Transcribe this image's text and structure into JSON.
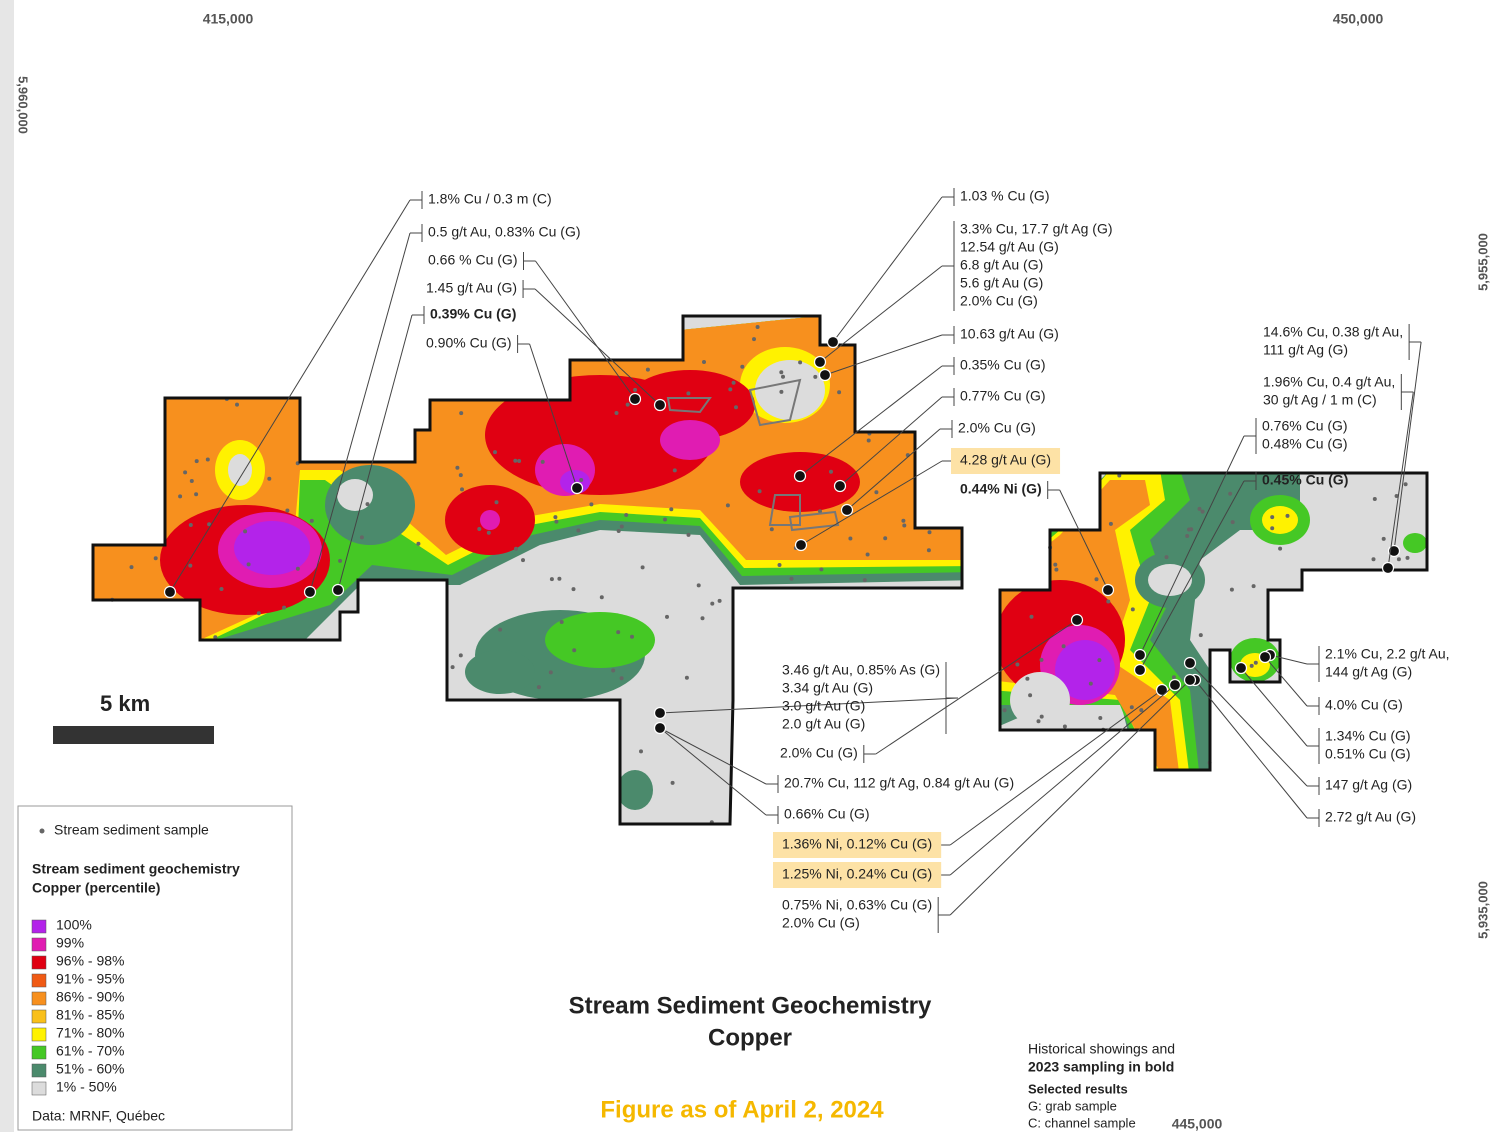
{
  "map": {
    "coordinates": {
      "easting": [
        "415,000",
        "450,000",
        "445,000"
      ],
      "northing": [
        "5,960,000",
        "5,955,000",
        "5,935,000"
      ]
    },
    "scale_bar": "5 km",
    "title": [
      "Stream Sediment Geochemistry",
      "Copper"
    ],
    "footer": "Figure as of April 2, 2024",
    "notes": [
      "Historical showings and",
      "2023 sampling in bold",
      "Selected results",
      "G: grab sample",
      "C: channel sample"
    ],
    "legend": {
      "sample": "Stream sediment sample",
      "heading": [
        "Stream sediment geochemistry",
        "Copper (percentile)"
      ],
      "classes": [
        {
          "label": "100%",
          "color": "#b323ea"
        },
        {
          "label": "99%",
          "color": "#e01cb2"
        },
        {
          "label": "96% - 98%",
          "color": "#e00012"
        },
        {
          "label": "91% - 95%",
          "color": "#f05a14"
        },
        {
          "label": "86% - 90%",
          "color": "#f7901e"
        },
        {
          "label": "81% - 85%",
          "color": "#f9c01a"
        },
        {
          "label": "71% - 80%",
          "color": "#fff200"
        },
        {
          "label": "61% - 70%",
          "color": "#45c825"
        },
        {
          "label": "51% - 60%",
          "color": "#4b8a6c"
        },
        {
          "label": "1% - 50%",
          "color": "#dcdcdc"
        }
      ],
      "source": "Data: MRNF, Québec"
    },
    "labels": [
      {
        "lines": [
          "1.8% Cu / 0.3 m (C)"
        ],
        "bold": false,
        "highlight": false
      },
      {
        "lines": [
          "0.5 g/t Au, 0.83% Cu (G)"
        ],
        "bold": false,
        "highlight": false
      },
      {
        "lines": [
          "0.66 % Cu (G)"
        ],
        "bold": false,
        "highlight": false
      },
      {
        "lines": [
          "1.45 g/t Au (G)"
        ],
        "bold": false,
        "highlight": false
      },
      {
        "lines": [
          "0.39% Cu (G)"
        ],
        "bold": true,
        "highlight": false
      },
      {
        "lines": [
          "0.90% Cu (G)"
        ],
        "bold": false,
        "highlight": false
      },
      {
        "lines": [
          "1.03 % Cu (G)"
        ],
        "bold": false,
        "highlight": false
      },
      {
        "lines": [
          "3.3% Cu, 17.7 g/t Ag (G)",
          "12.54 g/t Au (G)",
          "6.8 g/t Au (G)",
          "5.6 g/t Au (G)",
          "2.0% Cu (G)"
        ],
        "bold": false,
        "highlight": false
      },
      {
        "lines": [
          "10.63 g/t Au (G)"
        ],
        "bold": false,
        "highlight": false
      },
      {
        "lines": [
          "0.35% Cu (G)"
        ],
        "bold": false,
        "highlight": false
      },
      {
        "lines": [
          "0.77% Cu (G)"
        ],
        "bold": false,
        "highlight": false
      },
      {
        "lines": [
          "2.0% Cu (G)"
        ],
        "bold": false,
        "highlight": false
      },
      {
        "lines": [
          "4.28 g/t Au (G)"
        ],
        "bold": false,
        "highlight": true
      },
      {
        "lines": [
          "0.44% Ni (G)"
        ],
        "bold": true,
        "highlight": false
      },
      {
        "lines": [
          "14.6% Cu, 0.38 g/t Au,",
          "111 g/t Ag (G)"
        ],
        "bold": false,
        "highlight": false
      },
      {
        "lines": [
          "1.96% Cu, 0.4 g/t Au,",
          "30 g/t Ag / 1 m (C)"
        ],
        "bold": false,
        "highlight": false
      },
      {
        "lines": [
          "0.76% Cu (G)",
          "0.48% Cu (G)"
        ],
        "bold": false,
        "highlight": false
      },
      {
        "lines": [
          "0.45% Cu (G)"
        ],
        "bold": true,
        "highlight": false
      },
      {
        "lines": [
          "2.1% Cu, 2.2 g/t Au,",
          "144 g/t Ag (G)"
        ],
        "bold": false,
        "highlight": false
      },
      {
        "lines": [
          "4.0% Cu (G)"
        ],
        "bold": false,
        "highlight": false
      },
      {
        "lines": [
          "1.34% Cu (G)",
          "0.51% Cu (G)"
        ],
        "bold": false,
        "highlight": false
      },
      {
        "lines": [
          "147 g/t Ag (G)"
        ],
        "bold": false,
        "highlight": false
      },
      {
        "lines": [
          "2.72 g/t Au (G)"
        ],
        "bold": false,
        "highlight": false
      },
      {
        "lines": [
          "3.46 g/t Au, 0.85% As (G)",
          "3.34 g/t Au (G)",
          "3.0 g/t Au (G)",
          "2.0 g/t Au (G)"
        ],
        "bold": false,
        "highlight": false
      },
      {
        "lines": [
          "2.0% Cu (G)"
        ],
        "bold": false,
        "highlight": false
      },
      {
        "lines": [
          "20.7% Cu, 112 g/t Ag, 0.84 g/t Au (G)"
        ],
        "bold": false,
        "highlight": false
      },
      {
        "lines": [
          "0.66% Cu (G)"
        ],
        "bold": false,
        "highlight": false
      },
      {
        "lines": [
          "1.36% Ni, 0.12% Cu (G)"
        ],
        "bold": false,
        "highlight": true
      },
      {
        "lines": [
          "1.25% Ni, 0.24% Cu (G)"
        ],
        "bold": false,
        "highlight": true
      },
      {
        "lines": [
          "0.75% Ni, 0.63% Cu (G)",
          "2.0% Cu (G)"
        ],
        "bold": false,
        "highlight": false
      }
    ]
  }
}
